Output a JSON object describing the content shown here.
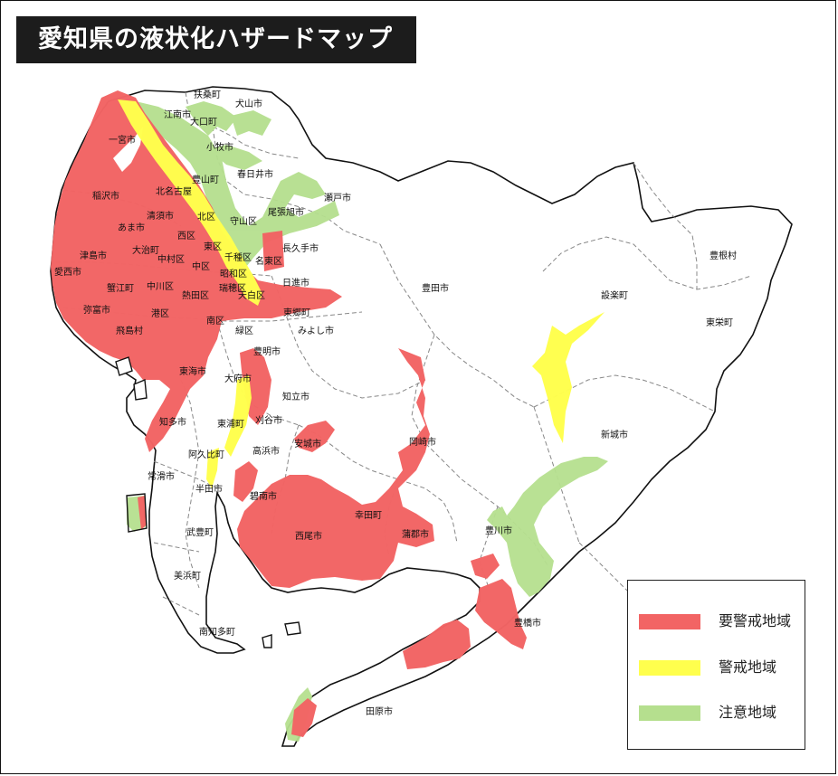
{
  "title": "愛知県の液状化ハザードマップ",
  "colors": {
    "high_risk": "#f26464",
    "warning": "#ffff4d",
    "caution": "#b5df8e",
    "boundary": "#111111",
    "inner_boundary": "#777777"
  },
  "legend": [
    {
      "label": "要警戒地域",
      "color": "#f26464"
    },
    {
      "label": "警戒地域",
      "color": "#ffff4d"
    },
    {
      "label": "注意地域",
      "color": "#b5df8e"
    }
  ],
  "places": [
    "扶桑町",
    "犬山市",
    "江南市",
    "大口町",
    "一宮市",
    "小牧市",
    "春日井市",
    "豊山町",
    "瀬戸市",
    "北名古屋",
    "稲沢市",
    "清須市",
    "北区",
    "守山区",
    "尾張旭市",
    "あま市",
    "西区",
    "大治町",
    "東区",
    "長久手市",
    "津島市",
    "中村区",
    "千種区",
    "名東区",
    "愛西市",
    "中区",
    "昭和区",
    "蟹江町",
    "中川区",
    "熱田区",
    "瑞穂区",
    "天白区",
    "日進市",
    "豊田市",
    "弥富市",
    "港区",
    "東郷町",
    "南区",
    "飛島村",
    "緑区",
    "みよし市",
    "豊明市",
    "東海市",
    "大府市",
    "知立市",
    "知多市",
    "東浦町",
    "刈谷市",
    "安城市",
    "阿久比町",
    "高浜市",
    "岡崎市",
    "常滑市",
    "碧南市",
    "半田市",
    "幸田町",
    "武豊町",
    "西尾市",
    "蒲郡市",
    "美浜町",
    "豊川市",
    "南知多町",
    "豊橋市",
    "田原市",
    "設楽町",
    "新城市",
    "豊根村",
    "東栄町"
  ]
}
